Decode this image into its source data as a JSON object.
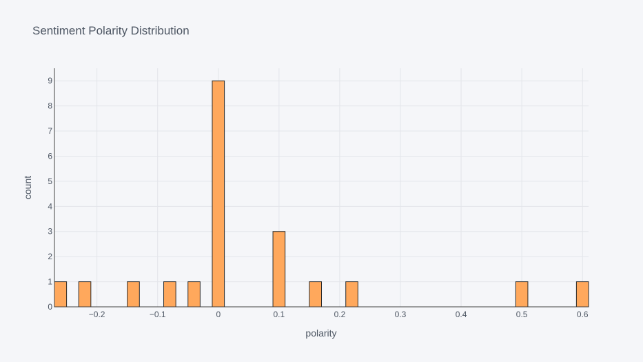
{
  "chart_data": {
    "type": "bar",
    "title": "Sentiment Polarity Distribution",
    "xlabel": "polarity",
    "ylabel": "count",
    "xlim": [
      -0.27,
      0.61
    ],
    "ylim": [
      0,
      9.5
    ],
    "grid": true,
    "bin_width": 0.02,
    "x_tick_values": [
      -0.2,
      -0.1,
      0,
      0.1,
      0.2,
      0.3,
      0.4,
      0.5,
      0.6
    ],
    "x_ticks": [
      "−0.2",
      "−0.1",
      "0",
      "0.1",
      "0.2",
      "0.3",
      "0.4",
      "0.5",
      "0.6"
    ],
    "y_tick_values": [
      0,
      1,
      2,
      3,
      4,
      5,
      6,
      7,
      8,
      9
    ],
    "y_ticks": [
      "0",
      "1",
      "2",
      "3",
      "4",
      "5",
      "6",
      "7",
      "8",
      "9"
    ],
    "x": [
      -0.26,
      -0.22,
      -0.14,
      -0.08,
      -0.04,
      0.0,
      0.1,
      0.16,
      0.22,
      0.5,
      0.6
    ],
    "values": [
      1,
      1,
      1,
      1,
      1,
      9,
      3,
      1,
      1,
      1,
      1
    ],
    "colors": {
      "bar_fill": "#ffa85c",
      "bar_stroke": "#2b2b2b",
      "grid": "#e3e5ea",
      "axis_line": "#444444",
      "text": "#4d5663",
      "background": "#f5f6f9"
    }
  }
}
